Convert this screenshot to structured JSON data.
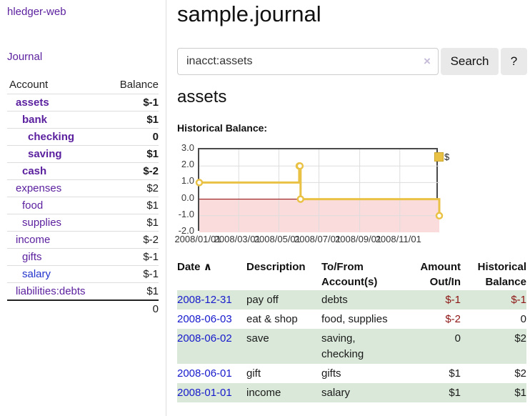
{
  "colors": {
    "link_purple": "#5a1f9e",
    "link_blue": "#1619cc",
    "negative_red": "#8e1515",
    "faded_negative_red": "#b97b7b",
    "row_green": "#d9e8d8",
    "series_gold": "#e9c245",
    "negative_region_pink": "#fbdcdc",
    "zero_line_red": "#8b0000",
    "grid_gray": "#dddddd"
  },
  "app": {
    "title": "hledger-web",
    "nav_journal": "Journal"
  },
  "sidebar": {
    "headers": {
      "account": "Account",
      "balance": "Balance"
    },
    "accounts": [
      {
        "name": "assets",
        "balance": "$-1",
        "indent": 1,
        "bold": true,
        "balance_style": "neg"
      },
      {
        "name": "bank",
        "balance": "$1",
        "indent": 2,
        "bold": true,
        "balance_style": "pos"
      },
      {
        "name": "checking",
        "balance": "0",
        "indent": 3,
        "bold": true,
        "balance_style": "pos"
      },
      {
        "name": "saving",
        "balance": "$1",
        "indent": 3,
        "bold": true,
        "balance_style": "pos"
      },
      {
        "name": "cash",
        "balance": "$-2",
        "indent": 2,
        "bold": true,
        "balance_style": "neg"
      },
      {
        "name": "expenses",
        "balance": "$2",
        "indent": 1,
        "bold": false,
        "balance_style": "pos"
      },
      {
        "name": "food",
        "balance": "$1",
        "indent": 2,
        "bold": false,
        "balance_style": "pos"
      },
      {
        "name": "supplies",
        "balance": "$1",
        "indent": 2,
        "bold": false,
        "balance_style": "pos"
      },
      {
        "name": "income",
        "balance": "$-2",
        "indent": 1,
        "bold": false,
        "balance_style": "fneg"
      },
      {
        "name": "gifts",
        "balance": "$-1",
        "indent": 2,
        "bold": false,
        "balance_style": "fneg"
      },
      {
        "name": "salary",
        "balance": "$-1",
        "indent": 2,
        "bold": false,
        "balance_style": "fneg",
        "link_color": "blue"
      },
      {
        "name": "liabilities:debts",
        "balance": "$1",
        "indent": 1,
        "bold": false,
        "balance_style": "pos"
      }
    ],
    "total": "0"
  },
  "main": {
    "title": "sample.journal",
    "search": {
      "value": "inacct:assets",
      "clear_icon": "×",
      "button_label": "Search",
      "help_label": "?"
    },
    "account_heading": "assets",
    "chart_label": "Historical Balance:"
  },
  "chart_data": {
    "type": "line",
    "style": "step",
    "title": "Historical Balance:",
    "x_range": [
      "2008-01-01",
      "2008-12-31"
    ],
    "y_range": [
      -2,
      3
    ],
    "y_ticks": [
      {
        "value": 3,
        "label": "3.0"
      },
      {
        "value": 2,
        "label": "2.0"
      },
      {
        "value": 1,
        "label": "1.0"
      },
      {
        "value": 0,
        "label": "0.0"
      },
      {
        "value": -1,
        "label": "-1.0"
      },
      {
        "value": -2,
        "label": "-2.0"
      }
    ],
    "x_ticks": [
      {
        "date": "2008-01-01",
        "label": "2008/01/01"
      },
      {
        "date": "2008-03-01",
        "label": "2008/03/01"
      },
      {
        "date": "2008-05-01",
        "label": "2008/05/01"
      },
      {
        "date": "2008-07-01",
        "label": "2008/07/01"
      },
      {
        "date": "2008-09-01",
        "label": "2008/09/01"
      },
      {
        "date": "2008-11-01",
        "label": "2008/11/01"
      }
    ],
    "series": [
      {
        "name": "$",
        "color": "#e9c245",
        "points": [
          [
            "2008-01-01",
            1
          ],
          [
            "2008-06-01",
            2
          ],
          [
            "2008-06-02",
            2
          ],
          [
            "2008-06-03",
            0
          ],
          [
            "2008-12-31",
            -1
          ]
        ]
      }
    ],
    "legend": {
      "label": "$",
      "position": "top-right"
    },
    "grid": true
  },
  "register": {
    "headers": {
      "date": "Date",
      "sort_caret": "∧",
      "description": "Description",
      "accounts_line1": "To/From",
      "accounts_line2": "Account(s)",
      "amount_line1": "Amount",
      "amount_line2": "Out/In",
      "balance_line1": "Historical",
      "balance_line2": "Balance"
    },
    "rows": [
      {
        "date": "2008-12-31",
        "description": "pay off",
        "accounts": "debts",
        "amount": "$-1",
        "balance": "$-1"
      },
      {
        "date": "2008-06-03",
        "description": "eat & shop",
        "accounts": "food, supplies",
        "amount": "$-2",
        "balance": "0"
      },
      {
        "date": "2008-06-02",
        "description": "save",
        "accounts": "saving, checking",
        "amount": "0",
        "balance": "$2"
      },
      {
        "date": "2008-06-01",
        "description": "gift",
        "accounts": "gifts",
        "amount": "$1",
        "balance": "$2"
      },
      {
        "date": "2008-01-01",
        "description": "income",
        "accounts": "salary",
        "amount": "$1",
        "balance": "$1"
      }
    ]
  }
}
